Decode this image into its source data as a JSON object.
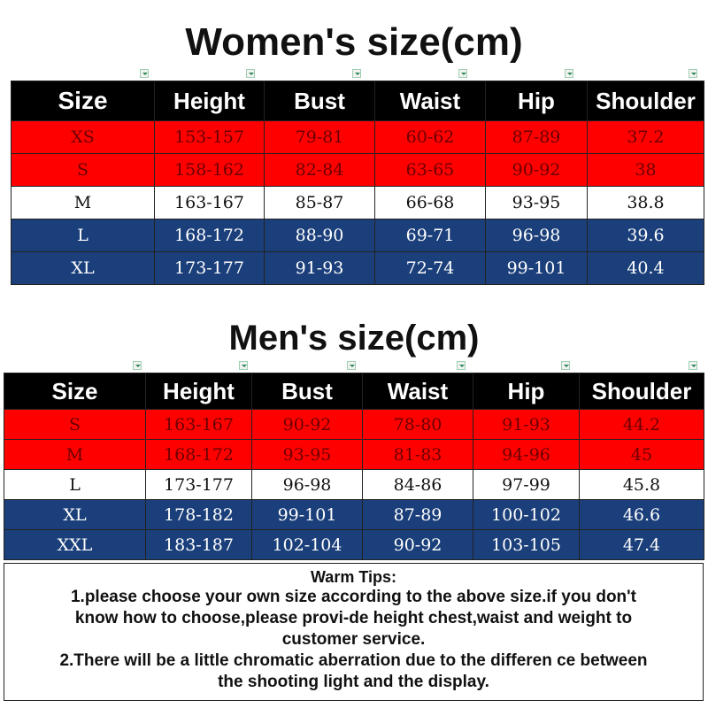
{
  "women": {
    "title": "Women's size(cm)",
    "headers": [
      "Size",
      "Height",
      "Bust",
      "Waist",
      "Hip",
      "Shoulder"
    ],
    "rows": [
      {
        "style": "red",
        "cells": [
          "XS",
          "153-157",
          "79-81",
          "60-62",
          "87-89",
          "37.2"
        ]
      },
      {
        "style": "red",
        "cells": [
          "S",
          "158-162",
          "82-84",
          "63-65",
          "90-92",
          "38"
        ]
      },
      {
        "style": "white",
        "cells": [
          "M",
          "163-167",
          "85-87",
          "66-68",
          "93-95",
          "38.8"
        ]
      },
      {
        "style": "blue",
        "cells": [
          "L",
          "168-172",
          "88-90",
          "69-71",
          "96-98",
          "39.6"
        ]
      },
      {
        "style": "blue",
        "cells": [
          "XL",
          "173-177",
          "91-93",
          "72-74",
          "99-101",
          "40.4"
        ]
      }
    ]
  },
  "men": {
    "title": "Men's size(cm)",
    "headers": [
      "Size",
      "Height",
      "Bust",
      "Waist",
      "Hip",
      "Shoulder"
    ],
    "rows": [
      {
        "style": "red",
        "cells": [
          "S",
          "163-167",
          "90-92",
          "78-80",
          "91-93",
          "44.2"
        ]
      },
      {
        "style": "red",
        "cells": [
          "M",
          "168-172",
          "93-95",
          "81-83",
          "94-96",
          "45"
        ]
      },
      {
        "style": "white",
        "cells": [
          "L",
          "173-177",
          "96-98",
          "84-86",
          "97-99",
          "45.8"
        ]
      },
      {
        "style": "blue",
        "cells": [
          "XL",
          "178-182",
          "99-101",
          "87-89",
          "100-102",
          "46.6"
        ]
      },
      {
        "style": "blue",
        "cells": [
          "XXL",
          "183-187",
          "102-104",
          "90-92",
          "103-105",
          "47.4"
        ]
      }
    ]
  },
  "tips": {
    "title": "Warm Tips:",
    "lines": [
      "1.please choose your own size according to the above size.if you don't",
      "know how to choose,please provi-de height chest,waist and weight to",
      "customer service.",
      "2.There will be a little chromatic aberration due to the differen ce between",
      "the shooting light and the display."
    ]
  },
  "colors": {
    "header_bg": "#000000",
    "row_red": "#ff0000",
    "row_white": "#ffffff",
    "row_blue": "#1b3f7a"
  },
  "icons": {
    "column_marker": "dropdown-marker-icon"
  }
}
